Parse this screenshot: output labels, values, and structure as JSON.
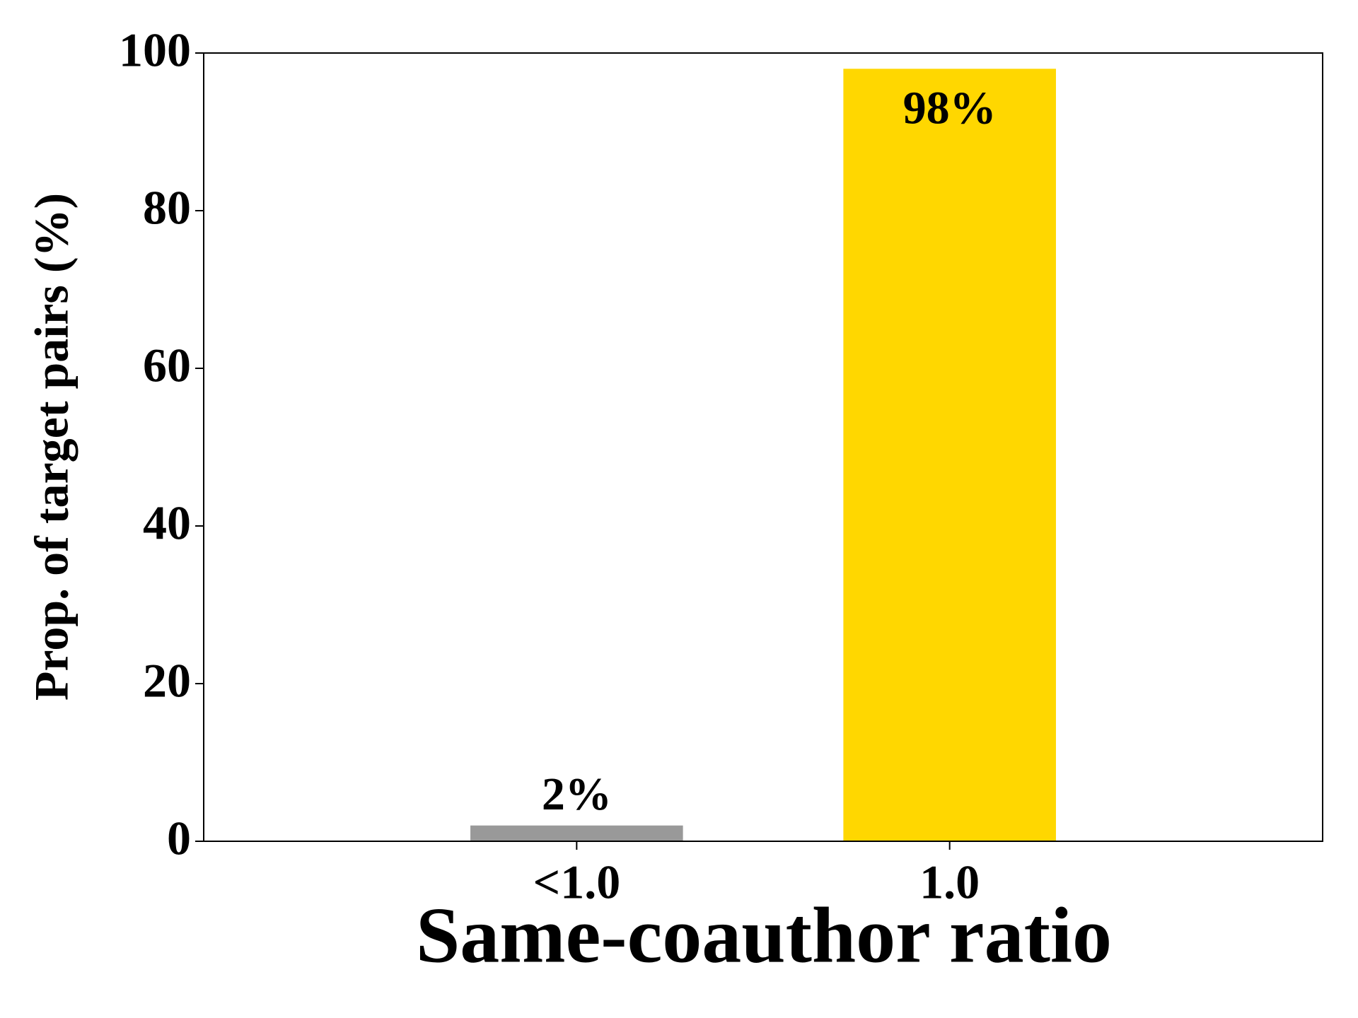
{
  "chart_data": {
    "type": "bar",
    "x_label": "Same-coauthor ratio",
    "y_label": "Prop. of target pairs (%)",
    "categories": [
      "<1.0",
      "1.0"
    ],
    "values": [
      2,
      98
    ],
    "value_labels": [
      "2%",
      "98%"
    ],
    "colors": [
      "#999999",
      "#ffd700"
    ],
    "ylim": [
      0,
      100
    ],
    "yticks": [
      0,
      20,
      40,
      60,
      80,
      100
    ],
    "grid": false
  }
}
